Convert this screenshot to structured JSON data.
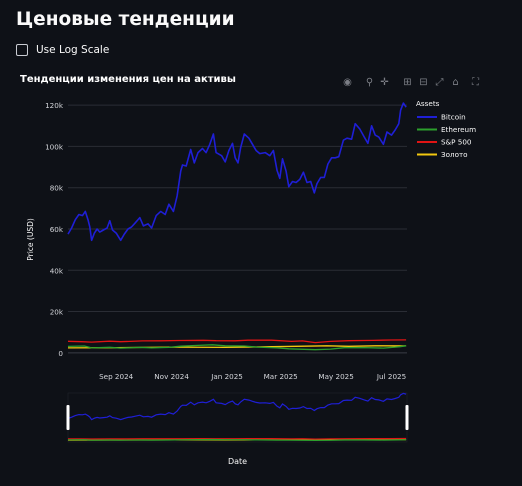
{
  "page": {
    "title": "Ценовые тенденции"
  },
  "log_toggle": {
    "label": "Use Log Scale",
    "checked": false
  },
  "modebar": {
    "icons": [
      "camera-icon",
      "zoom-icon",
      "pan-icon",
      "zoom-in-icon",
      "zoom-out-icon",
      "autoscale-icon",
      "reset-axes-icon",
      "fullscreen-icon"
    ]
  },
  "chart_data": {
    "type": "line",
    "title": "Тенденции изменения цен на активы",
    "xlabel": "Date",
    "ylabel": "Price (USD)",
    "ylim": [
      -2500,
      122000
    ],
    "xlim": [
      "2024-07-10",
      "2025-07-18"
    ],
    "x_ticks": [
      {
        "date": "2024-09-01",
        "label": "Sep 2024"
      },
      {
        "date": "2024-11-01",
        "label": "Nov 2024"
      },
      {
        "date": "2025-01-01",
        "label": "Jan 2025"
      },
      {
        "date": "2025-03-01",
        "label": "Mar 2025"
      },
      {
        "date": "2025-05-01",
        "label": "May 2025"
      },
      {
        "date": "2025-07-01",
        "label": "Jul 2025"
      }
    ],
    "y_ticks": [
      {
        "value": 0,
        "label": "0"
      },
      {
        "value": 20000,
        "label": "20k"
      },
      {
        "value": 40000,
        "label": "40k"
      },
      {
        "value": 60000,
        "label": "60k"
      },
      {
        "value": 80000,
        "label": "80k"
      },
      {
        "value": 100000,
        "label": "100k"
      },
      {
        "value": 120000,
        "label": "120k"
      }
    ],
    "grid": true,
    "legend": {
      "title": "Assets",
      "placement": "right"
    },
    "rangeslider": true,
    "series": [
      {
        "name": "Bitcoin",
        "color": "#1f1fd6",
        "points": [
          [
            "2024-07-10",
            57500
          ],
          [
            "2024-07-14",
            60500
          ],
          [
            "2024-07-18",
            64500
          ],
          [
            "2024-07-22",
            67000
          ],
          [
            "2024-07-26",
            66500
          ],
          [
            "2024-07-29",
            68500
          ],
          [
            "2024-08-01",
            64500
          ],
          [
            "2024-08-03",
            61000
          ],
          [
            "2024-08-05",
            54500
          ],
          [
            "2024-08-08",
            58000
          ],
          [
            "2024-08-11",
            60000
          ],
          [
            "2024-08-14",
            58500
          ],
          [
            "2024-08-18",
            59500
          ],
          [
            "2024-08-22",
            60500
          ],
          [
            "2024-08-25",
            64000
          ],
          [
            "2024-08-28",
            59500
          ],
          [
            "2024-09-01",
            58000
          ],
          [
            "2024-09-06",
            54500
          ],
          [
            "2024-09-10",
            57500
          ],
          [
            "2024-09-14",
            60000
          ],
          [
            "2024-09-18",
            61000
          ],
          [
            "2024-09-22",
            63000
          ],
          [
            "2024-09-27",
            65500
          ],
          [
            "2024-10-01",
            61500
          ],
          [
            "2024-10-06",
            62500
          ],
          [
            "2024-10-10",
            60500
          ],
          [
            "2024-10-15",
            66500
          ],
          [
            "2024-10-20",
            68500
          ],
          [
            "2024-10-25",
            67000
          ],
          [
            "2024-10-29",
            72000
          ],
          [
            "2024-11-03",
            68500
          ],
          [
            "2024-11-07",
            76000
          ],
          [
            "2024-11-11",
            88000
          ],
          [
            "2024-11-13",
            91000
          ],
          [
            "2024-11-17",
            90500
          ],
          [
            "2024-11-22",
            98500
          ],
          [
            "2024-11-26",
            92000
          ],
          [
            "2024-11-30",
            97000
          ],
          [
            "2024-12-05",
            99000
          ],
          [
            "2024-12-09",
            97000
          ],
          [
            "2024-12-13",
            101000
          ],
          [
            "2024-12-17",
            106000
          ],
          [
            "2024-12-20",
            97000
          ],
          [
            "2024-12-26",
            95500
          ],
          [
            "2024-12-30",
            92500
          ],
          [
            "2025-01-03",
            98000
          ],
          [
            "2025-01-07",
            101500
          ],
          [
            "2025-01-10",
            94500
          ],
          [
            "2025-01-13",
            92000
          ],
          [
            "2025-01-16",
            99500
          ],
          [
            "2025-01-20",
            106000
          ],
          [
            "2025-01-25",
            104000
          ],
          [
            "2025-01-29",
            101000
          ],
          [
            "2025-02-02",
            98000
          ],
          [
            "2025-02-06",
            96500
          ],
          [
            "2025-02-12",
            97000
          ],
          [
            "2025-02-17",
            95500
          ],
          [
            "2025-02-21",
            98000
          ],
          [
            "2025-02-25",
            88500
          ],
          [
            "2025-02-28",
            84500
          ],
          [
            "2025-03-03",
            94000
          ],
          [
            "2025-03-07",
            88000
          ],
          [
            "2025-03-10",
            80500
          ],
          [
            "2025-03-14",
            83000
          ],
          [
            "2025-03-18",
            82500
          ],
          [
            "2025-03-22",
            84000
          ],
          [
            "2025-03-26",
            87500
          ],
          [
            "2025-03-30",
            82500
          ],
          [
            "2025-04-03",
            83000
          ],
          [
            "2025-04-07",
            77500
          ],
          [
            "2025-04-10",
            82000
          ],
          [
            "2025-04-14",
            85000
          ],
          [
            "2025-04-18",
            85000
          ],
          [
            "2025-04-22",
            91500
          ],
          [
            "2025-04-26",
            94500
          ],
          [
            "2025-04-30",
            94500
          ],
          [
            "2025-05-04",
            95000
          ],
          [
            "2025-05-09",
            103000
          ],
          [
            "2025-05-13",
            104000
          ],
          [
            "2025-05-18",
            103500
          ],
          [
            "2025-05-22",
            111000
          ],
          [
            "2025-05-27",
            108500
          ],
          [
            "2025-06-01",
            104500
          ],
          [
            "2025-06-05",
            101500
          ],
          [
            "2025-06-09",
            110000
          ],
          [
            "2025-06-13",
            105500
          ],
          [
            "2025-06-17",
            104500
          ],
          [
            "2025-06-22",
            101000
          ],
          [
            "2025-06-26",
            107000
          ],
          [
            "2025-07-01",
            105500
          ],
          [
            "2025-07-05",
            108000
          ],
          [
            "2025-07-09",
            111000
          ],
          [
            "2025-07-11",
            117500
          ],
          [
            "2025-07-14",
            121000
          ],
          [
            "2025-07-17",
            119000
          ]
        ]
      },
      {
        "name": "Ethereum",
        "color": "#2ca02c",
        "points": [
          [
            "2024-07-10",
            3100
          ],
          [
            "2024-07-28",
            3300
          ],
          [
            "2024-08-05",
            2400
          ],
          [
            "2024-08-25",
            2700
          ],
          [
            "2024-09-06",
            2300
          ],
          [
            "2024-09-27",
            2650
          ],
          [
            "2024-10-10",
            2400
          ],
          [
            "2024-10-29",
            2650
          ],
          [
            "2024-11-11",
            3200
          ],
          [
            "2024-11-30",
            3600
          ],
          [
            "2024-12-16",
            3900
          ],
          [
            "2024-12-30",
            3400
          ],
          [
            "2025-01-20",
            3300
          ],
          [
            "2025-02-03",
            2800
          ],
          [
            "2025-02-25",
            2400
          ],
          [
            "2025-03-10",
            1950
          ],
          [
            "2025-04-08",
            1500
          ],
          [
            "2025-04-25",
            1800
          ],
          [
            "2025-05-10",
            2500
          ],
          [
            "2025-06-01",
            2550
          ],
          [
            "2025-06-22",
            2300
          ],
          [
            "2025-07-10",
            2950
          ],
          [
            "2025-07-17",
            3400
          ]
        ]
      },
      {
        "name": "S&P 500",
        "color": "#e01414",
        "points": [
          [
            "2024-07-10",
            5600
          ],
          [
            "2024-07-25",
            5400
          ],
          [
            "2024-08-05",
            5200
          ],
          [
            "2024-08-25",
            5620
          ],
          [
            "2024-09-06",
            5400
          ],
          [
            "2024-09-30",
            5760
          ],
          [
            "2024-10-20",
            5850
          ],
          [
            "2024-11-10",
            6000
          ],
          [
            "2024-12-06",
            6090
          ],
          [
            "2024-12-20",
            5900
          ],
          [
            "2025-01-10",
            5830
          ],
          [
            "2025-01-24",
            6100
          ],
          [
            "2025-02-19",
            6140
          ],
          [
            "2025-03-13",
            5520
          ],
          [
            "2025-03-25",
            5780
          ],
          [
            "2025-04-08",
            4980
          ],
          [
            "2025-04-25",
            5520
          ],
          [
            "2025-05-15",
            5900
          ],
          [
            "2025-06-10",
            6040
          ],
          [
            "2025-06-30",
            6200
          ],
          [
            "2025-07-17",
            6290
          ]
        ]
      },
      {
        "name": "Золото",
        "color": "#f2c80f",
        "points": [
          [
            "2024-07-10",
            2370
          ],
          [
            "2024-09-01",
            2500
          ],
          [
            "2024-10-30",
            2780
          ],
          [
            "2024-12-30",
            2630
          ],
          [
            "2025-02-20",
            2950
          ],
          [
            "2025-04-21",
            3420
          ],
          [
            "2025-05-15",
            3180
          ],
          [
            "2025-06-13",
            3430
          ],
          [
            "2025-07-17",
            3340
          ]
        ]
      }
    ]
  }
}
